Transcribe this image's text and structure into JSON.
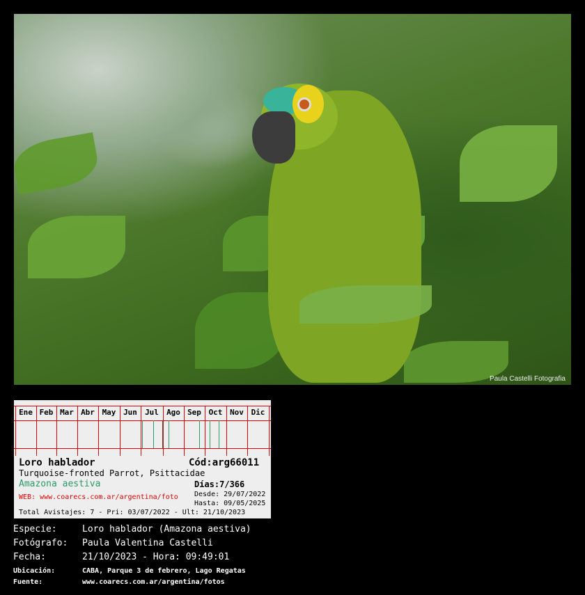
{
  "photo": {
    "watermark": "Paula Castelli Fotografia",
    "subject": "parrot among leaves"
  },
  "card": {
    "months": [
      "Ene",
      "Feb",
      "Mar",
      "Abr",
      "May",
      "Jun",
      "Jul",
      "Ago",
      "Sep",
      "Oct",
      "Nov",
      "Dic"
    ],
    "sightings": [
      {
        "date": "03/07/2022",
        "color": "#2a9a6a"
      },
      {
        "date": "Jul",
        "color": "#2a9a6a"
      },
      {
        "date": "Ago",
        "color": "#8b3a2a"
      },
      {
        "date": "Ago",
        "color": "#2a9a6a"
      },
      {
        "date": "Sep",
        "color": "#2a9a6a"
      },
      {
        "date": "Oct",
        "color": "#2a9a6a"
      },
      {
        "date": "21/10/2023",
        "color": "#2a9a6a"
      }
    ],
    "common_name": "Loro hablador",
    "code": "Cód:arg66011",
    "english": "Turquoise-fronted Parrot, Psittacidae",
    "days": "Días:7/366",
    "scientific": "Amazona aestiva",
    "since": "Desde: 29/07/2022",
    "web": "WEB: www.coarecs.com.ar/argentina/foto",
    "until": "Hasta: 09/05/2025",
    "totals": "Total Avistajes: 7 - Pri: 03/07/2022 - Ult: 21/10/2023"
  },
  "info": {
    "especie_label": "Especie:",
    "especie": "Loro hablador (Amazona aestiva)",
    "fotografo_label": "Fotógrafo:",
    "fotografo": "Paula Valentina Castelli",
    "fecha_label": "Fecha:",
    "fecha": "21/10/2023 - Hora: 09:49:01",
    "ubicacion_label": "Ubicación:",
    "ubicacion": "CABA, Parque 3 de febrero, Lago Regatas",
    "fuente_label": "Fuente:",
    "fuente": "www.coarecs.com.ar/argentina/fotos"
  }
}
